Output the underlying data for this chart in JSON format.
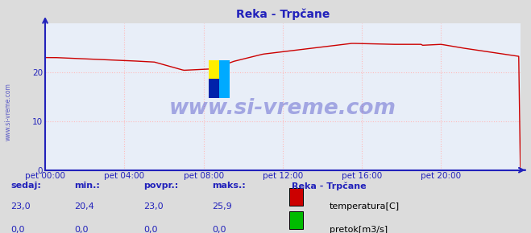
{
  "title": "Reka - Trpčane",
  "bg_color": "#dcdcdc",
  "plot_bg_color": "#e8eef8",
  "grid_color": "#ffbbbb",
  "grid_style": ":",
  "x_labels": [
    "pet 00:00",
    "pet 04:00",
    "pet 08:00",
    "pet 12:00",
    "pet 16:00",
    "pet 20:00"
  ],
  "x_ticks_norm": [
    0.0,
    0.1667,
    0.3333,
    0.5,
    0.6667,
    0.8333
  ],
  "y_ticks": [
    0,
    10,
    20
  ],
  "ylim": [
    0,
    30
  ],
  "temp_color": "#cc0000",
  "pretok_color": "#00bb00",
  "watermark_text": "www.si-vreme.com",
  "watermark_color": "#2222bb",
  "watermark_alpha": 0.35,
  "legend_title": "Reka - Trpčane",
  "legend_labels": [
    "temperatura[C]",
    "pretok[m3/s]"
  ],
  "table_headers": [
    "sedaj:",
    "min.:",
    "povpr.:",
    "maks.:"
  ],
  "table_temp": [
    "23,0",
    "20,4",
    "23,0",
    "25,9"
  ],
  "table_pretok": [
    "0,0",
    "0,0",
    "0,0",
    "0,0"
  ],
  "axis_color": "#2222bb",
  "tick_color": "#2222bb",
  "title_color": "#2222bb",
  "sidebar_text": "www.si-vreme.com"
}
